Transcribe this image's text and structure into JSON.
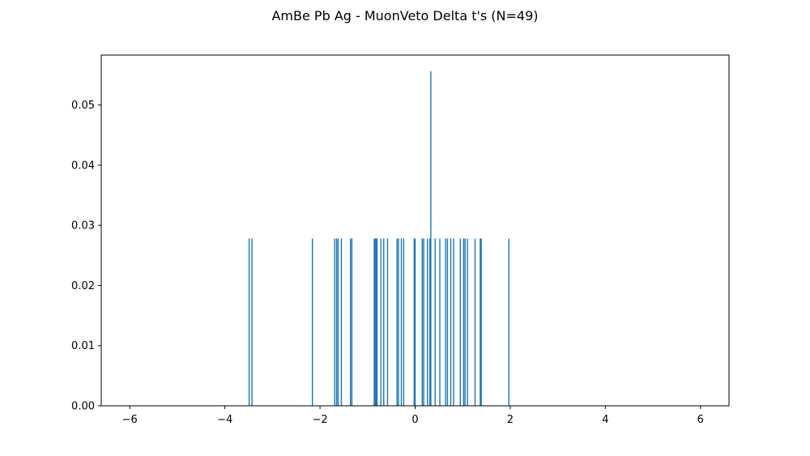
{
  "chart_data": {
    "type": "bar",
    "title": "AmBe Pb Ag - MuonVeto Delta t's (N=49)",
    "xlabel": "",
    "ylabel": "",
    "xlim": [
      -6.6,
      6.6
    ],
    "ylim": [
      0,
      0.0583
    ],
    "xticks": [
      -6,
      -4,
      -2,
      0,
      2,
      4,
      6
    ],
    "xtick_labels": [
      "−6",
      "−4",
      "−2",
      "0",
      "2",
      "4",
      "6"
    ],
    "yticks": [
      0.0,
      0.01,
      0.02,
      0.03,
      0.04,
      0.05
    ],
    "ytick_labels": [
      "0.00",
      "0.01",
      "0.02",
      "0.03",
      "0.04",
      "0.05"
    ],
    "bar_color": "#1f77b4",
    "bar_width": 0.024,
    "x": [
      -3.49,
      -3.43,
      -2.16,
      -1.69,
      -1.65,
      -1.62,
      -1.55,
      -1.36,
      -1.33,
      -0.86,
      -0.84,
      -0.82,
      -0.8,
      -0.72,
      -0.66,
      -0.58,
      -0.38,
      -0.35,
      -0.29,
      -0.24,
      -0.02,
      0.0,
      0.15,
      0.18,
      0.26,
      0.31,
      0.33,
      0.42,
      0.52,
      0.64,
      0.68,
      0.75,
      0.81,
      0.95,
      1.02,
      1.05,
      1.1,
      1.26,
      1.37,
      1.39,
      1.97
    ],
    "values": [
      0.0278,
      0.0278,
      0.0278,
      0.0278,
      0.0278,
      0.0278,
      0.0278,
      0.0278,
      0.0278,
      0.0278,
      0.0278,
      0.0278,
      0.0278,
      0.0278,
      0.0278,
      0.0278,
      0.0278,
      0.0278,
      0.0278,
      0.0278,
      0.0278,
      0.0278,
      0.0278,
      0.0278,
      0.0278,
      0.0278,
      0.0556,
      0.0278,
      0.0278,
      0.0278,
      0.0278,
      0.0278,
      0.0278,
      0.0278,
      0.0278,
      0.0278,
      0.0278,
      0.0278,
      0.0278,
      0.0278,
      0.0278
    ]
  }
}
